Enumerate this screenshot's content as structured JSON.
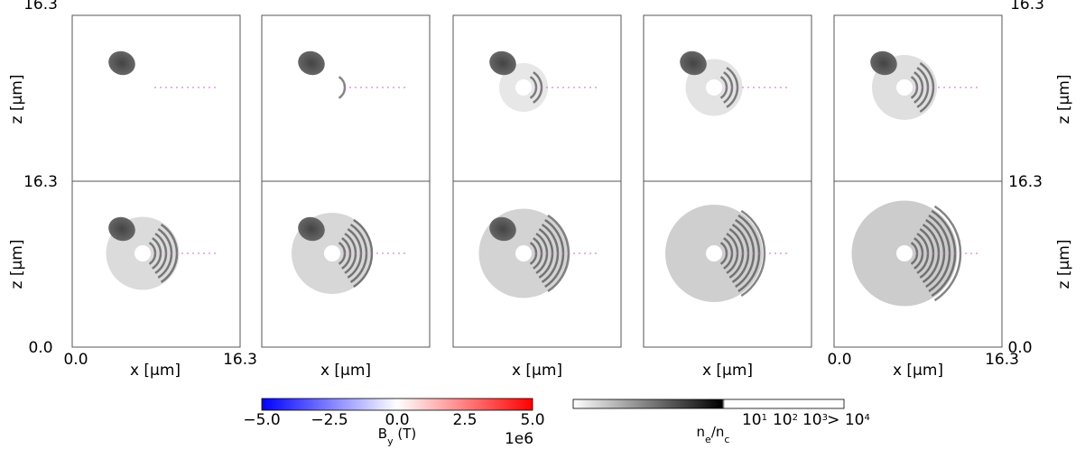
{
  "left_axis": {
    "label": "z [µm]",
    "ticks": [
      "16.3",
      "16.3",
      "0.0"
    ]
  },
  "right_axis": {
    "label": "z [µm]",
    "ticks": [
      "16.3",
      "16.3",
      "0.0"
    ]
  },
  "bottom_axis": {
    "label": "x [µm]",
    "ticks": [
      "0.0",
      "16.3"
    ]
  },
  "colorbars": [
    {
      "label": {
        "main": "B",
        "sub": "y",
        "rest": " (T)"
      },
      "ticks": [
        "−5.0",
        "−2.5",
        "0.0",
        "2.5",
        "5.0"
      ],
      "offset": "1e6"
    },
    {
      "label": {
        "main": "n",
        "sub": "e",
        "rest": "/n",
        "sub2": "c"
      },
      "ticks": [
        {
          "base": "10",
          "exp": "1"
        },
        {
          "base": "10",
          "exp": "2"
        },
        {
          "base": "10",
          "exp": "3"
        },
        {
          "prefix": "> ",
          "base": "10",
          "exp": "4"
        }
      ]
    }
  ]
}
